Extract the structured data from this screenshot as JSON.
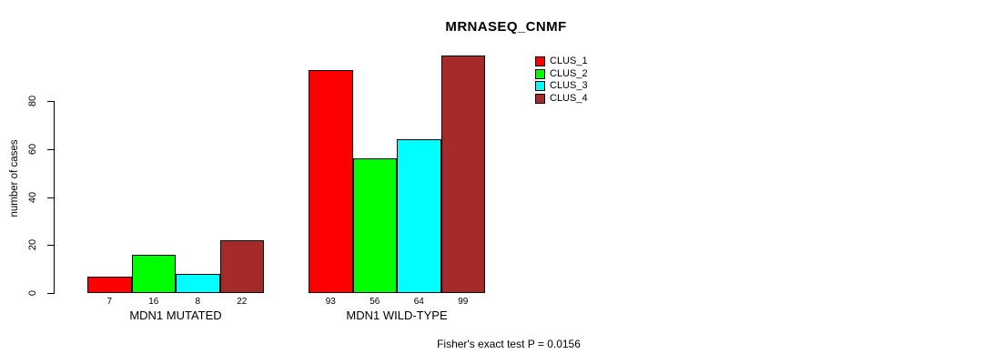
{
  "chart_data": {
    "type": "bar",
    "title": "MRNASEQ_CNMF",
    "ylabel": "number of cases",
    "xlabel": "",
    "categories": [
      "MDN1 MUTATED",
      "MDN1 WILD-TYPE"
    ],
    "series": [
      {
        "name": "CLUS_1",
        "color": "#FF0000",
        "values": [
          7,
          93
        ]
      },
      {
        "name": "CLUS_2",
        "color": "#00FF00",
        "values": [
          16,
          56
        ]
      },
      {
        "name": "CLUS_3",
        "color": "#00FFFF",
        "values": [
          8,
          64
        ]
      },
      {
        "name": "CLUS_4",
        "color": "#A52A2A",
        "values": [
          22,
          99
        ]
      }
    ],
    "yticks": [
      0,
      20,
      40,
      60,
      80
    ],
    "ylim": [
      0,
      100
    ],
    "grid": false,
    "legend_position": "top-right",
    "bar_value_labels": true,
    "annotation": "Fisher's exact test P = 0.0156"
  }
}
